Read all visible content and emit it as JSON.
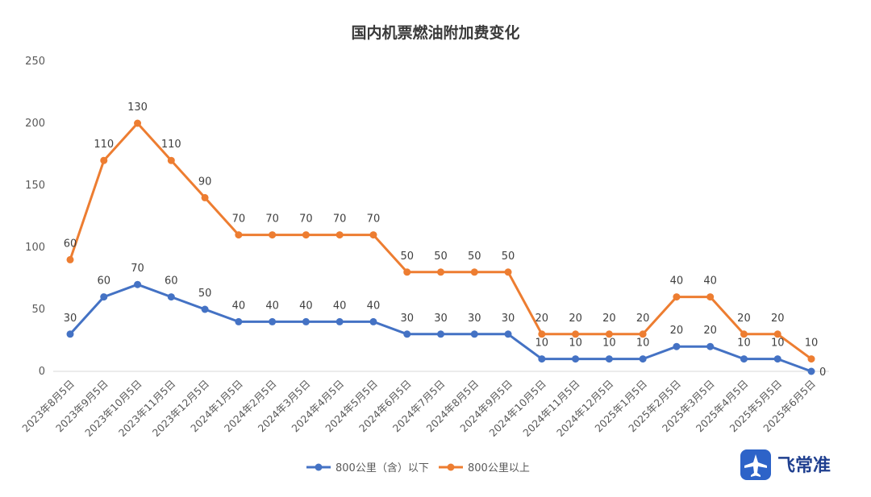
{
  "chart_data": {
    "type": "line",
    "title": "国内机票燃油附加费变化",
    "xlabel": "",
    "ylabel": "",
    "ylim": [
      0,
      250
    ],
    "yticks": [
      0,
      50,
      100,
      150,
      200,
      250
    ],
    "grid": "horizontal-baseline-only",
    "legend_position": "bottom-center",
    "categories": [
      "2023年8月5日",
      "2023年9月5日",
      "2023年10月5日",
      "2023年11月5日",
      "2023年12月5日",
      "2024年1月5日",
      "2024年2月5日",
      "2024年3月5日",
      "2024年4月5日",
      "2024年5月5日",
      "2024年6月5日",
      "2024年7月5日",
      "2024年8月5日",
      "2024年9月5日",
      "2024年10月5日",
      "2024年11月5日",
      "2024年12月5日",
      "2025年1月5日",
      "2025年2月5日",
      "2025年3月5日",
      "2025年4月5日",
      "2025年5月5日",
      "2025年6月5日"
    ],
    "series": [
      {
        "name": "800公里（含）以下",
        "color": "#4472c4",
        "values": [
          30,
          60,
          70,
          60,
          50,
          40,
          40,
          40,
          40,
          40,
          30,
          30,
          30,
          30,
          10,
          10,
          10,
          10,
          20,
          20,
          10,
          10,
          0
        ]
      },
      {
        "name": "800公里以上",
        "color": "#ed7d31",
        "values": [
          90,
          170,
          200,
          170,
          140,
          110,
          110,
          110,
          110,
          110,
          80,
          80,
          80,
          80,
          30,
          30,
          30,
          30,
          60,
          60,
          30,
          30,
          10
        ],
        "data_labels": [
          60,
          110,
          130,
          110,
          90,
          70,
          70,
          70,
          70,
          70,
          50,
          50,
          50,
          50,
          20,
          20,
          20,
          20,
          40,
          40,
          20,
          20,
          10
        ]
      }
    ]
  },
  "logo": {
    "text": "飞常准",
    "color": "#1f3f8f",
    "icon": "airplane-icon"
  }
}
